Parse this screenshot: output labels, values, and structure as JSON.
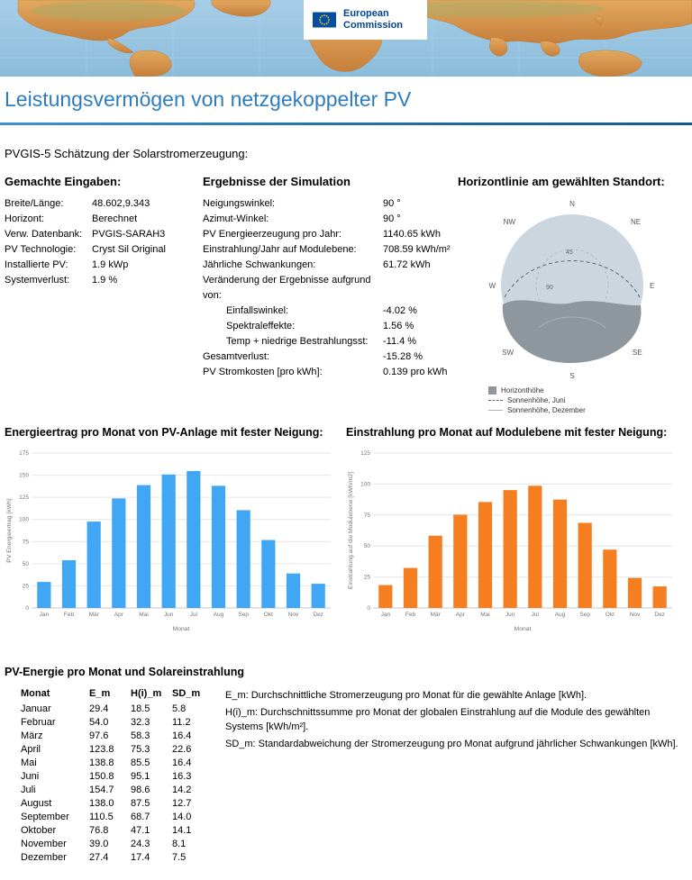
{
  "header": {
    "logo": {
      "line1": "European",
      "line2": "Commission"
    },
    "title": "Leistungsvermögen von netzgekoppelter PV"
  },
  "intro": "PVGIS-5 Schätzung der Solarstromerzeugung:",
  "inputs": {
    "heading": "Gemachte Eingaben:",
    "rows": [
      {
        "label": "Breite/Länge:",
        "value": "48.602,9.343"
      },
      {
        "label": "Horizont:",
        "value": "Berechnet"
      },
      {
        "label": "Verw. Datenbank:",
        "value": "PVGIS-SARAH3"
      },
      {
        "label": "PV Technologie:",
        "value": "Cryst Sil Original"
      },
      {
        "label": "Installierte PV:",
        "value": "1.9 kWp"
      },
      {
        "label": "Systemverlust:",
        "value": "1.9 %"
      }
    ]
  },
  "results": {
    "heading": "Ergebnisse der Simulation",
    "rows": [
      {
        "label": "Neigungswinkel:",
        "value": "90 °"
      },
      {
        "label": "Azimut-Winkel:",
        "value": "90 °"
      },
      {
        "label": "PV Energieerzeugung pro Jahr:",
        "value": "1140.65 kWh"
      },
      {
        "label": "Einstrahlung/Jahr auf Modulebene:",
        "value": "708.59 kWh/m²"
      },
      {
        "label": "Jährliche Schwankungen:",
        "value": "61.72 kWh"
      },
      {
        "label": "Veränderung der Ergebnisse aufgrund von:",
        "value": ""
      },
      {
        "label": "Einfallswinkel:",
        "value": "-4.02 %",
        "indent": true
      },
      {
        "label": "Spektraleffekte:",
        "value": "1.56 %",
        "indent": true
      },
      {
        "label": "Temp + niedrige Bestrahlungsst:",
        "value": "-11.4 %",
        "indent": true
      },
      {
        "label": "Gesamtverlust:",
        "value": "-15.28 %"
      },
      {
        "label": "PV Stromkosten [pro kWh]:",
        "value": "0.139 pro kWh"
      }
    ]
  },
  "horizon": {
    "heading": "Horizontlinie am gewählten Standort:",
    "compass": [
      "N",
      "NE",
      "E",
      "SE",
      "S",
      "SW",
      "W",
      "NW"
    ],
    "radial_labels": [
      "45",
      "90"
    ],
    "legend": [
      {
        "label": "Horizonthöhe"
      },
      {
        "label": "Sonnenhöhe, Juni"
      },
      {
        "label": "Sonnenhöhe, Dezember"
      }
    ]
  },
  "chart_data": [
    {
      "type": "bar",
      "title": "Energieertrag pro Monat von PV-Anlage mit fester Neigung:",
      "categories": [
        "Jan",
        "Feb",
        "Mär",
        "Apr",
        "Mai",
        "Jun",
        "Jul",
        "Aug",
        "Sep",
        "Okt",
        "Nov",
        "Dez"
      ],
      "values": [
        29.4,
        54.0,
        97.6,
        123.8,
        138.8,
        150.8,
        154.7,
        138.0,
        110.5,
        76.8,
        39.0,
        27.4
      ],
      "xlabel": "Monat",
      "ylabel": "PV Energieertrag [kWh]",
      "ylim": [
        0,
        175
      ],
      "ytick": 25,
      "grid": true,
      "legend_position": "none",
      "color": "#41a7f5"
    },
    {
      "type": "bar",
      "title": "Einstrahlung pro Monat auf Modulebene mit fester Neigung:",
      "categories": [
        "Jan",
        "Feb",
        "Mär",
        "Apr",
        "Mai",
        "Jun",
        "Jul",
        "Aug",
        "Sep",
        "Okt",
        "Nov",
        "Dez"
      ],
      "values": [
        18.5,
        32.3,
        58.3,
        75.3,
        85.5,
        95.1,
        98.6,
        87.5,
        68.7,
        47.1,
        24.3,
        17.4
      ],
      "xlabel": "Monat",
      "ylabel": "Einstrahlung auf die Modulebene [kWh/m2]",
      "ylim": [
        0,
        125
      ],
      "ytick": 25,
      "grid": true,
      "legend_position": "none",
      "color": "#f57e20"
    }
  ],
  "table": {
    "title": "PV-Energie pro Monat und Solareinstrahlung",
    "headers": [
      "Monat",
      "E_m",
      "H(i)_m",
      "SD_m"
    ],
    "rows": [
      {
        "monat": "Januar",
        "e_m": "29.4",
        "h_m": "18.5",
        "sd_m": "5.8"
      },
      {
        "monat": "Februar",
        "e_m": "54.0",
        "h_m": "32.3",
        "sd_m": "11.2"
      },
      {
        "monat": "März",
        "e_m": "97.6",
        "h_m": "58.3",
        "sd_m": "16.4"
      },
      {
        "monat": "April",
        "e_m": "123.8",
        "h_m": "75.3",
        "sd_m": "22.6"
      },
      {
        "monat": "Mai",
        "e_m": "138.8",
        "h_m": "85.5",
        "sd_m": "16.4"
      },
      {
        "monat": "Juni",
        "e_m": "150.8",
        "h_m": "95.1",
        "sd_m": "16.3"
      },
      {
        "monat": "Juli",
        "e_m": "154.7",
        "h_m": "98.6",
        "sd_m": "14.2"
      },
      {
        "monat": "August",
        "e_m": "138.0",
        "h_m": "87.5",
        "sd_m": "12.7"
      },
      {
        "monat": "September",
        "e_m": "110.5",
        "h_m": "68.7",
        "sd_m": "14.0"
      },
      {
        "monat": "Oktober",
        "e_m": "76.8",
        "h_m": "47.1",
        "sd_m": "14.1"
      },
      {
        "monat": "November",
        "e_m": "39.0",
        "h_m": "24.3",
        "sd_m": "8.1"
      },
      {
        "monat": "Dezember",
        "e_m": "27.4",
        "h_m": "17.4",
        "sd_m": "7.5"
      }
    ]
  },
  "notes": [
    {
      "text": "E_m: Durchschnittliche Stromerzeugung pro Monat für die gewählte Anlage [kWh]."
    },
    {
      "text": "H(i)_m: Durchschnittssumme pro Monat der globalen Einstrahlung auf die Module des gewählten Systems [kWh/m²]."
    },
    {
      "text": "SD_m: Standardabweichung der Stromerzeugung pro Monat aufgrund jährlicher Schwankungen [kWh]."
    }
  ],
  "colors": {
    "title_blue": "#2e7cbe",
    "energy_bar": "#41a7f5",
    "irradiation_bar": "#f57e20",
    "ec_navy": "#004494",
    "horizon_fill": "#8f979e",
    "sky_fill": "#ccd6df"
  }
}
